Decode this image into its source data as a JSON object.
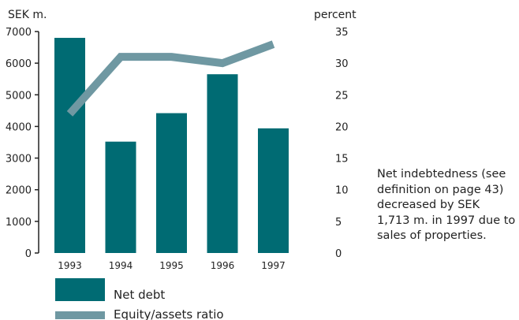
{
  "chart_data": {
    "type": "bar+line",
    "categories": [
      "1993",
      "1994",
      "1995",
      "1996",
      "1997"
    ],
    "series": [
      {
        "name": "Net debt",
        "type": "bar",
        "axis": "left",
        "values": [
          6800,
          3520,
          4420,
          5650,
          3940
        ],
        "color": "#006b73"
      },
      {
        "name": "Equity/assets ratio",
        "type": "line",
        "axis": "right",
        "values": [
          22,
          31,
          31,
          30,
          33
        ],
        "color": "#6f98a2"
      }
    ],
    "yleft": {
      "label": "SEK m.",
      "ylim": [
        0,
        7000
      ],
      "ticks": [
        "0",
        "1000",
        "2000",
        "3000",
        "4000",
        "5000",
        "6000",
        "7000"
      ]
    },
    "yright": {
      "label": "percent",
      "ylim": [
        0,
        35
      ],
      "ticks": [
        "0",
        "5",
        "10",
        "15",
        "20",
        "25",
        "30",
        "35"
      ]
    },
    "legend_position": "bottom-left",
    "grid": false
  },
  "note": "Net indebtedness (see definition on page 43) decreased by SEK 1,713 m. in 1997 due to sales of properties."
}
